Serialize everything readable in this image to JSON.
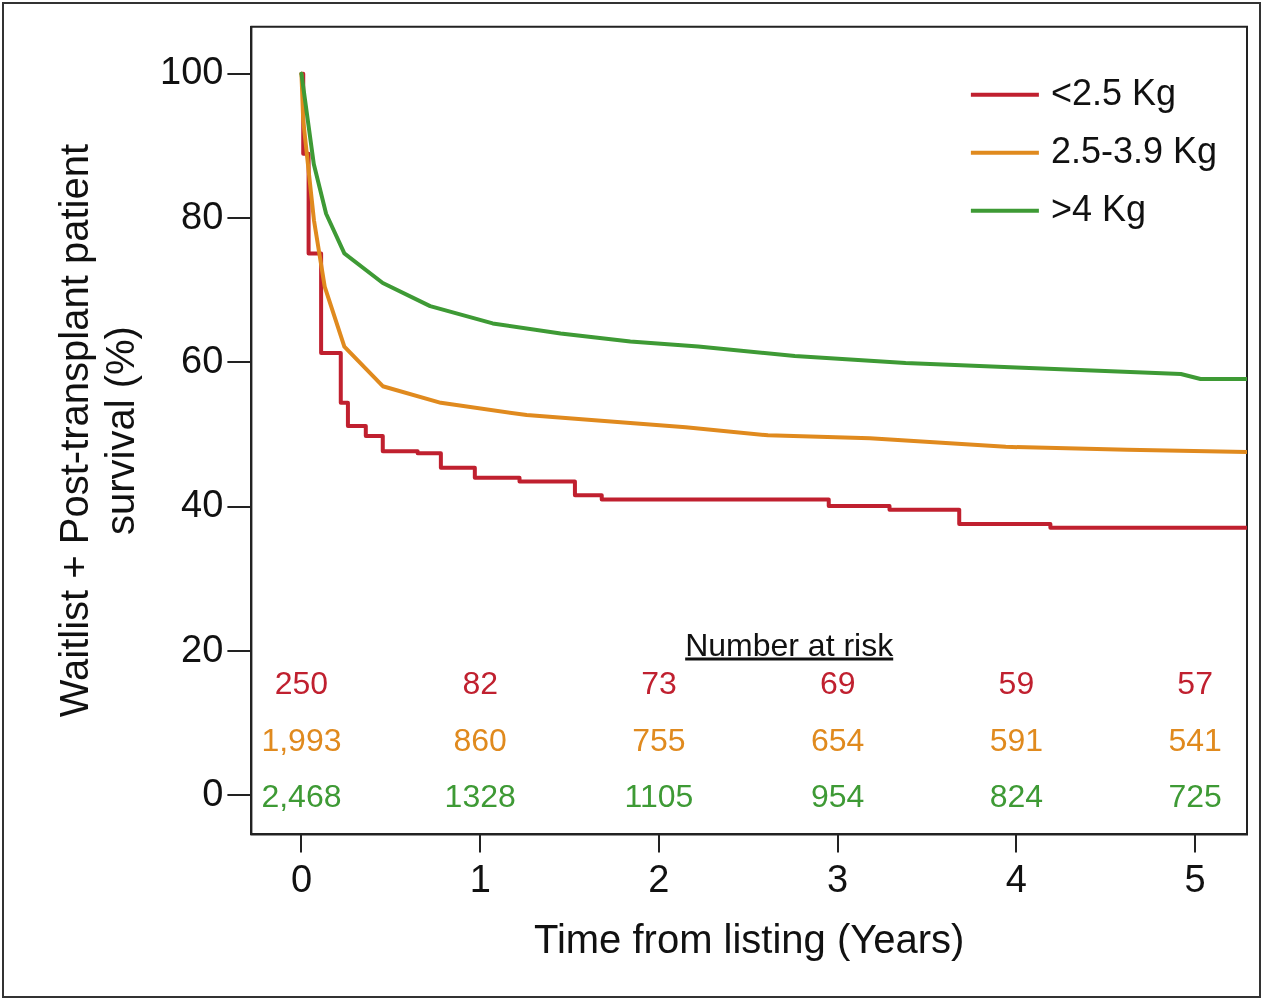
{
  "chart_data": {
    "type": "line",
    "xlabel": "Time from listing (Years)",
    "ylabel": "Waitlist + Post-transplant patient survival (%)",
    "xlim": [
      -0.28,
      5.29
    ],
    "ylim": [
      -5.4,
      106.5
    ],
    "xticks": [
      0,
      1,
      2,
      3,
      4,
      5
    ],
    "yticks": [
      0,
      20,
      40,
      60,
      80,
      100
    ],
    "grid": false,
    "legend": "top right",
    "marker": "none",
    "line_style": "solid",
    "series": [
      {
        "name": "<2.5 Kg",
        "color": "#c0202f",
        "type": "step",
        "x": [
          0,
          0.01,
          0.04,
          0.11,
          0.22,
          0.26,
          0.36,
          0.455,
          0.65,
          0.78,
          0.97,
          1.22,
          1.53,
          1.68,
          2.95,
          3.29,
          3.68,
          4.19,
          5.29
        ],
        "values": [
          100,
          88.9,
          75.1,
          61.3,
          54.4,
          51.2,
          49.8,
          47.7,
          47.4,
          45.4,
          44.0,
          43.5,
          41.6,
          41.0,
          40.1,
          39.6,
          37.6,
          37.1,
          37.1
        ]
      },
      {
        "name": "2.5-3.9 Kg",
        "color": "#e08a1e",
        "x": [
          0,
          0.01,
          0.07,
          0.13,
          0.24,
          0.455,
          0.78,
          1.26,
          1.84,
          2.15,
          2.61,
          3.18,
          3.94,
          4.62,
          5.29
        ],
        "values": [
          100,
          93.5,
          79.7,
          70.5,
          62.2,
          56.7,
          54.4,
          52.7,
          51.6,
          51.0,
          49.9,
          49.5,
          48.3,
          47.9,
          47.6
        ]
      },
      {
        "name": ">4 Kg",
        "color": "#3e9a35",
        "x": [
          0,
          0.069,
          0.138,
          0.24,
          0.455,
          0.72,
          1.07,
          1.45,
          1.84,
          2.22,
          2.76,
          3.38,
          4.0,
          4.92,
          5.03,
          5.29
        ],
        "values": [
          100,
          87.5,
          80.6,
          75.1,
          71.0,
          67.8,
          65.4,
          64.0,
          62.9,
          62.2,
          60.9,
          59.9,
          59.3,
          58.4,
          57.7,
          57.7
        ]
      }
    ],
    "annotations": [
      "Number at risk",
      "250",
      "82",
      "73",
      "69",
      "59",
      "57",
      "1,993",
      "860",
      "755",
      "654",
      "591",
      "541",
      "2,468",
      "1328",
      "1105",
      "954",
      "824",
      "725"
    ]
  }
}
